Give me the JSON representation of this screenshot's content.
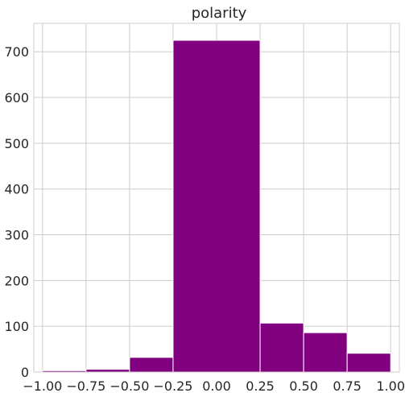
{
  "chart_data": {
    "type": "bar",
    "title": "polarity",
    "xlabel": "",
    "ylabel": "",
    "bins": [
      {
        "x0": -1.0,
        "x1": -0.75,
        "value": 3
      },
      {
        "x0": -0.75,
        "x1": -0.5,
        "value": 6
      },
      {
        "x0": -0.5,
        "x1": -0.25,
        "value": 32
      },
      {
        "x0": -0.25,
        "x1": 0.25,
        "value": 725
      },
      {
        "x0": 0.25,
        "x1": 0.5,
        "value": 107
      },
      {
        "x0": 0.5,
        "x1": 0.75,
        "value": 86
      },
      {
        "x0": 0.75,
        "x1": 1.0,
        "value": 41
      }
    ],
    "xlim": [
      -1.05,
      1.05
    ],
    "ylim": [
      0,
      762
    ],
    "xticks": [
      -1.0,
      -0.75,
      -0.5,
      -0.25,
      0.0,
      0.25,
      0.5,
      0.75,
      1.0
    ],
    "xtick_labels": [
      "−1.00",
      "−0.75",
      "−0.50",
      "−0.25",
      "0.00",
      "0.25",
      "0.50",
      "0.75",
      "1.00"
    ],
    "yticks": [
      0,
      100,
      200,
      300,
      400,
      500,
      600,
      700
    ],
    "ytick_labels": [
      "0",
      "100",
      "200",
      "300",
      "400",
      "500",
      "600",
      "700"
    ],
    "bar_color": "#800080",
    "grid": true
  }
}
